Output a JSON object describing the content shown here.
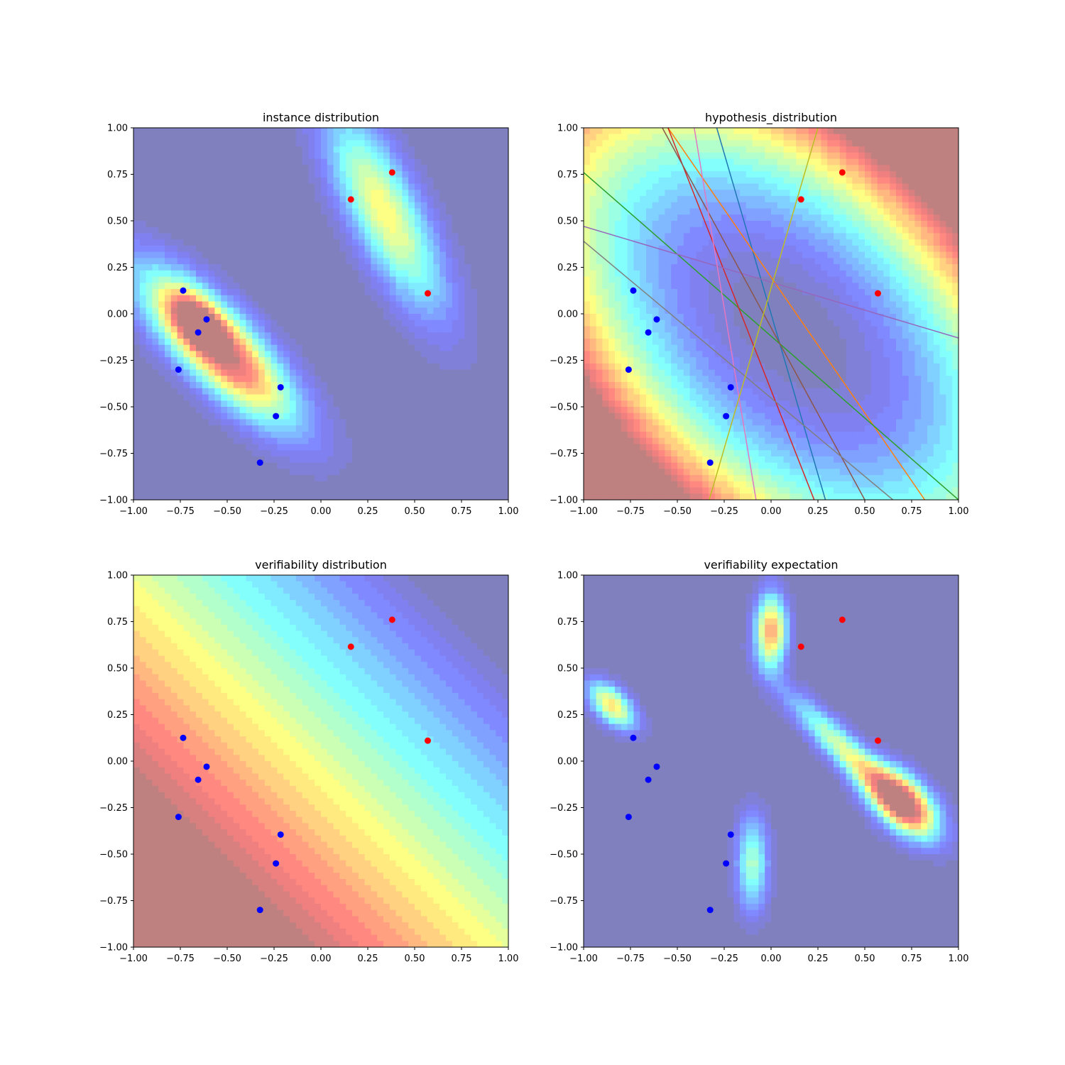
{
  "figure": {
    "colors": {
      "positive_point": "#ff0000",
      "negative_point": "#0000ff",
      "background_low": "#7f7fbf",
      "colormap": "jet",
      "colormap_alpha": 0.5
    }
  },
  "chart_data": [
    {
      "type": "contour",
      "title": "instance distribution",
      "xlabel": "",
      "ylabel": "",
      "xlim": [
        -1.0,
        1.0
      ],
      "ylim": [
        -1.0,
        1.0
      ],
      "xticks": [
        "−1.00",
        "−0.75",
        "−0.50",
        "−0.25",
        "0.00",
        "0.25",
        "0.50",
        "0.75",
        "1.00"
      ],
      "yticks": [
        "−1.00",
        "−0.75",
        "−0.50",
        "−0.25",
        "0.00",
        "0.25",
        "0.50",
        "0.75",
        "1.00"
      ],
      "grid": false,
      "colormap": "jet",
      "field": "two diagonal density ridges: high peak near (-0.65, -0.05) and elongated peak near (0.30, 0.55)",
      "series": [
        {
          "color": "red",
          "points": [
            [
              0.16,
              0.615
            ],
            [
              0.38,
              0.76
            ],
            [
              0.57,
              0.11
            ]
          ]
        },
        {
          "color": "blue",
          "points": [
            [
              -0.735,
              0.125
            ],
            [
              -0.61,
              -0.03
            ],
            [
              -0.655,
              -0.1
            ],
            [
              -0.76,
              -0.3
            ],
            [
              -0.215,
              -0.395
            ],
            [
              -0.24,
              -0.55
            ],
            [
              -0.325,
              -0.8
            ]
          ]
        }
      ]
    },
    {
      "type": "contour",
      "title": "hypothesis_distribution",
      "xlabel": "",
      "ylabel": "",
      "xlim": [
        -1.0,
        1.0
      ],
      "ylim": [
        -1.0,
        1.0
      ],
      "xticks": [
        "−1.00",
        "−0.75",
        "−0.50",
        "−0.25",
        "0.00",
        "0.25",
        "0.50",
        "0.75",
        "1.00"
      ],
      "yticks": [
        "−1.00",
        "−0.75",
        "−0.50",
        "−0.25",
        "0.00",
        "0.25",
        "0.50",
        "0.75",
        "1.00"
      ],
      "grid": false,
      "colormap": "jet",
      "field": "elliptical bowl centered near (0.10, -0.10), rising to the top-right and bottom-left corners",
      "lines": [
        {
          "color": "#1f77b4",
          "points": [
            [
              -0.29,
              1.0
            ],
            [
              0.29,
              -1.0
            ]
          ]
        },
        {
          "color": "#ff7f0e",
          "points": [
            [
              -0.55,
              1.0
            ],
            [
              0.82,
              -1.0
            ]
          ]
        },
        {
          "color": "#2ca02c",
          "points": [
            [
              -1.0,
              0.76
            ],
            [
              1.0,
              -1.0
            ]
          ]
        },
        {
          "color": "#d62728",
          "points": [
            [
              -0.55,
              1.0
            ],
            [
              0.23,
              -1.0
            ]
          ]
        },
        {
          "color": "#9467bd",
          "points": [
            [
              -1.0,
              0.47
            ],
            [
              1.0,
              -0.13
            ]
          ]
        },
        {
          "color": "#8c564b",
          "points": [
            [
              -0.58,
              1.0
            ],
            [
              0.5,
              -1.0
            ]
          ]
        },
        {
          "color": "#e377c2",
          "points": [
            [
              -0.41,
              1.0
            ],
            [
              -0.08,
              -1.0
            ]
          ]
        },
        {
          "color": "#7f7f7f",
          "points": [
            [
              -1.0,
              0.39
            ],
            [
              0.65,
              -1.0
            ]
          ]
        },
        {
          "color": "#bcbd22",
          "points": [
            [
              0.25,
              1.0
            ],
            [
              -0.33,
              -1.0
            ]
          ]
        }
      ],
      "series": [
        {
          "color": "red",
          "points": [
            [
              0.16,
              0.615
            ],
            [
              0.38,
              0.76
            ],
            [
              0.57,
              0.11
            ]
          ]
        },
        {
          "color": "blue",
          "points": [
            [
              -0.735,
              0.125
            ],
            [
              -0.61,
              -0.03
            ],
            [
              -0.655,
              -0.1
            ],
            [
              -0.76,
              -0.3
            ],
            [
              -0.215,
              -0.395
            ],
            [
              -0.24,
              -0.55
            ],
            [
              -0.325,
              -0.8
            ]
          ]
        }
      ]
    },
    {
      "type": "contour",
      "title": "verifiability distribution",
      "xlabel": "",
      "ylabel": "",
      "xlim": [
        -1.0,
        1.0
      ],
      "ylim": [
        -1.0,
        1.0
      ],
      "xticks": [
        "−1.00",
        "−0.75",
        "−0.50",
        "−0.25",
        "0.00",
        "0.25",
        "0.50",
        "0.75",
        "1.00"
      ],
      "yticks": [
        "−1.00",
        "−0.75",
        "−0.50",
        "−0.25",
        "0.00",
        "0.25",
        "0.50",
        "0.75",
        "1.00"
      ],
      "grid": false,
      "colormap": "jet",
      "field": "diagonal gradient: dark red lower-left region, yellow band, cyan band, blue to dark blue upper-right",
      "series": [
        {
          "color": "red",
          "points": [
            [
              0.16,
              0.615
            ],
            [
              0.38,
              0.76
            ],
            [
              0.57,
              0.11
            ]
          ]
        },
        {
          "color": "blue",
          "points": [
            [
              -0.735,
              0.125
            ],
            [
              -0.61,
              -0.03
            ],
            [
              -0.655,
              -0.1
            ],
            [
              -0.76,
              -0.3
            ],
            [
              -0.215,
              -0.395
            ],
            [
              -0.24,
              -0.55
            ],
            [
              -0.325,
              -0.8
            ]
          ]
        }
      ]
    },
    {
      "type": "contour",
      "title": "verifiability expectation",
      "xlabel": "",
      "ylabel": "",
      "xlim": [
        -1.0,
        1.0
      ],
      "ylim": [
        -1.0,
        1.0
      ],
      "xticks": [
        "−1.00",
        "−0.75",
        "−0.50",
        "−0.25",
        "0.00",
        "0.25",
        "0.50",
        "0.75",
        "1.00"
      ],
      "yticks": [
        "−1.00",
        "−0.75",
        "−0.50",
        "−0.25",
        "0.00",
        "0.25",
        "0.50",
        "0.75",
        "1.00"
      ],
      "grid": false,
      "colormap": "jet",
      "field": "peaks near (0.70, -0.22), (0.00, 0.70), (-0.85, 0.30) and (-0.10, -0.55) along the two ridges",
      "series": [
        {
          "color": "red",
          "points": [
            [
              0.16,
              0.615
            ],
            [
              0.38,
              0.76
            ],
            [
              0.57,
              0.11
            ]
          ]
        },
        {
          "color": "blue",
          "points": [
            [
              -0.735,
              0.125
            ],
            [
              -0.61,
              -0.03
            ],
            [
              -0.655,
              -0.1
            ],
            [
              -0.76,
              -0.3
            ],
            [
              -0.215,
              -0.395
            ],
            [
              -0.24,
              -0.55
            ],
            [
              -0.325,
              -0.8
            ]
          ]
        }
      ]
    }
  ]
}
